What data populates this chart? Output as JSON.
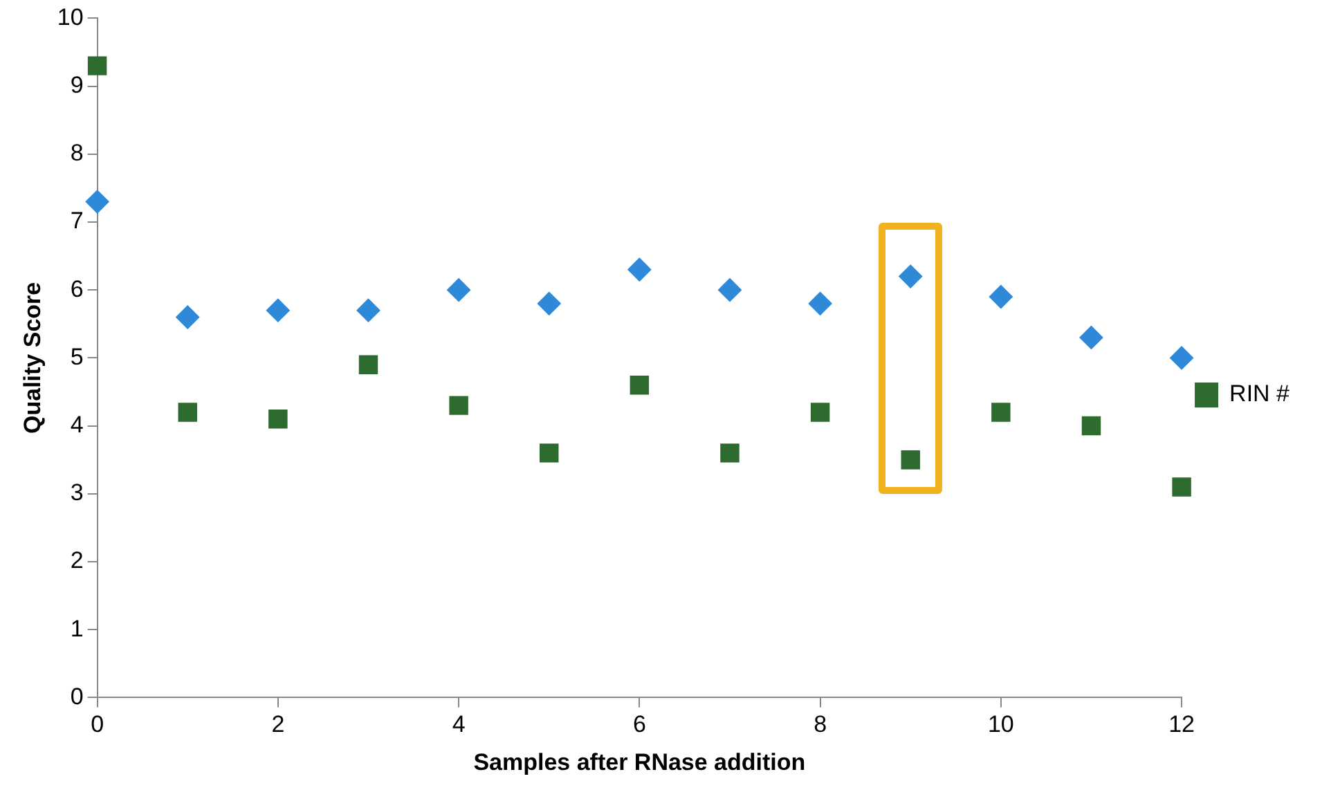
{
  "chart_data": {
    "type": "scatter",
    "xlabel": "Samples after RNase addition",
    "ylabel": "Quality Score",
    "x": [
      0,
      1,
      2,
      3,
      4,
      5,
      6,
      7,
      8,
      9,
      10,
      11,
      12
    ],
    "series": [
      {
        "color": "#2e8ad8",
        "marker": "diamond",
        "values": [
          7.3,
          5.6,
          5.7,
          5.7,
          6.0,
          5.8,
          6.3,
          6.0,
          5.8,
          6.2,
          5.9,
          5.3,
          5.0
        ]
      },
      {
        "name": "RIN #",
        "color": "#2e6b2e",
        "marker": "square",
        "values": [
          9.3,
          4.2,
          4.1,
          4.9,
          4.3,
          3.6,
          4.6,
          3.6,
          4.2,
          3.5,
          4.2,
          4.0,
          3.1
        ]
      }
    ],
    "xlim": [
      0,
      12
    ],
    "xticks": [
      0,
      2,
      4,
      6,
      8,
      10,
      12
    ],
    "ylim": [
      0,
      10
    ],
    "yticks": [
      0,
      1,
      2,
      3,
      4,
      5,
      6,
      7,
      8,
      9,
      10
    ],
    "grid": false,
    "legend": "right"
  }
}
